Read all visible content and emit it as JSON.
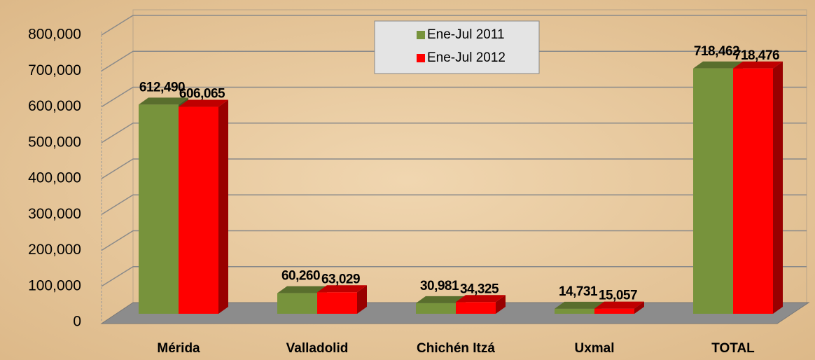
{
  "chart_data": {
    "type": "bar3d",
    "categories": [
      "Mérida",
      "Valladolid",
      "Chichén Itzá",
      "Uxmal",
      "TOTAL"
    ],
    "series": [
      {
        "name": "Ene-Jul 2011",
        "color": "#77933c",
        "values": [
          612490,
          60260,
          30981,
          14731,
          718462
        ],
        "value_labels": [
          "612,490",
          "60,260",
          "30,981",
          "14,731",
          "718,462"
        ]
      },
      {
        "name": "Ene-Jul 2012",
        "color": "#ff0000",
        "values": [
          606065,
          63029,
          34325,
          15057,
          718476
        ],
        "value_labels": [
          "606,065",
          "63,029",
          "34,325",
          "15,057",
          "718,476"
        ]
      }
    ],
    "ylim": [
      0,
      800000
    ],
    "yticks": [
      0,
      {
        "value": 100000,
        "label": "100,000"
      },
      {
        "value": 200000,
        "label": "200,000"
      },
      {
        "value": 300000,
        "label": "300,000"
      },
      {
        "value": 400000,
        "label": "400,000"
      },
      {
        "value": 500000,
        "label": "500,000"
      },
      {
        "value": 600000,
        "label": "600,000"
      },
      {
        "value": 700000,
        "label": "700,000"
      },
      {
        "value": 800000,
        "label": "800,000"
      }
    ],
    "grid": true,
    "legend": "top"
  }
}
